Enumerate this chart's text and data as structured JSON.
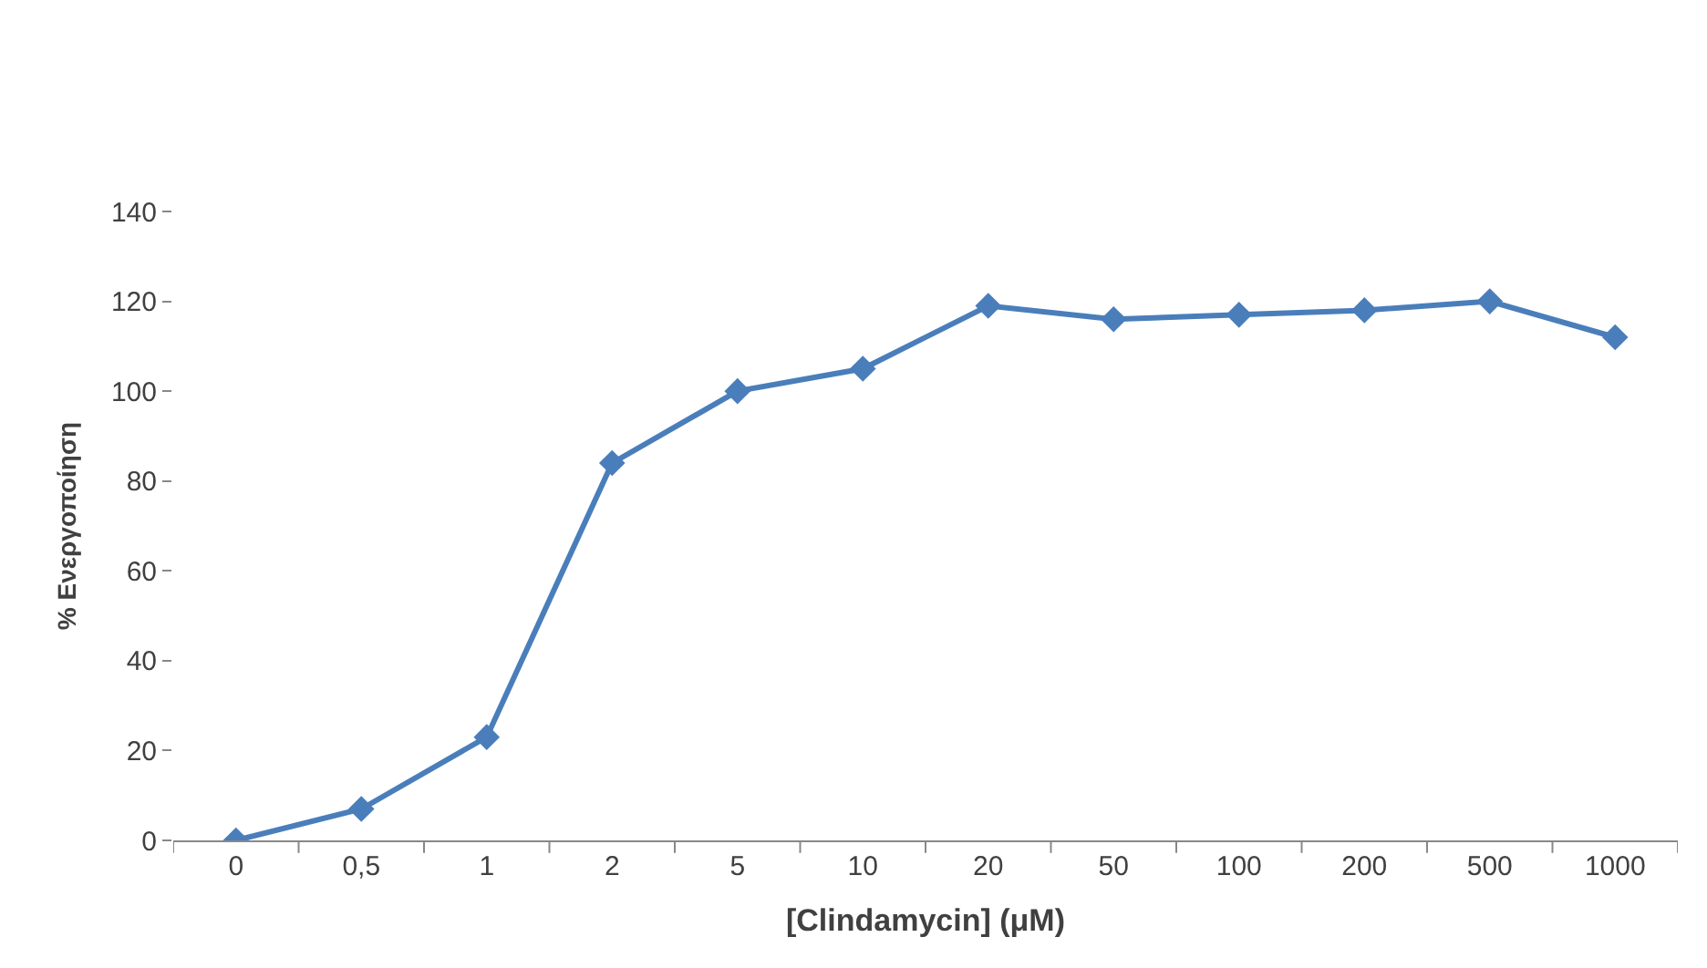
{
  "chart_data": {
    "type": "line",
    "xlabel": "[Clindamycin] (μM)",
    "ylabel": "% Ενεργοποίηση",
    "categories": [
      "0",
      "0,5",
      "1",
      "2",
      "5",
      "10",
      "20",
      "50",
      "100",
      "200",
      "500",
      "1000"
    ],
    "series": [
      {
        "color": "#4a7ebb",
        "values": [
          0,
          7,
          23,
          84,
          100,
          105,
          119,
          116,
          117,
          118,
          120,
          112
        ]
      }
    ],
    "ylim": [
      0,
      140
    ],
    "yticks": [
      0,
      20,
      40,
      60,
      80,
      100,
      120,
      140
    ],
    "marker": "diamond",
    "line_style": "solid"
  }
}
